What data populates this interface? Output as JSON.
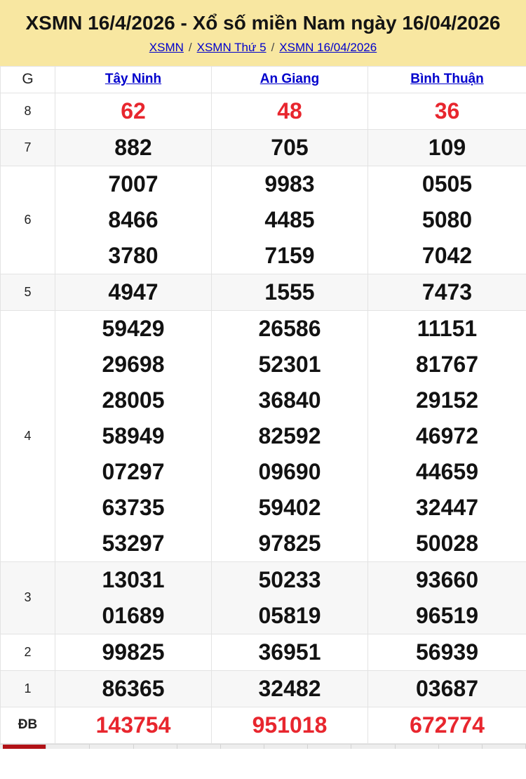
{
  "colors": {
    "header_bg": "#f8e7a1",
    "link_blue": "#0000cc",
    "accent_red": "#e8262e",
    "row_alt_bg": "#f7f7f7",
    "border": "#e3e3e3",
    "strip_active_red": "#b11217"
  },
  "header": {
    "title": "XSMN 16/4/2026 - Xổ số miền Nam ngày 16/04/2026",
    "separator": "/",
    "breadcrumb": [
      {
        "label": "XSMN"
      },
      {
        "label": "XSMN Thứ 5"
      },
      {
        "label": "XSMN 16/04/2026"
      }
    ]
  },
  "table": {
    "corner_label": "G",
    "provinces": [
      "Tây Ninh",
      "An Giang",
      "Bình Thuận"
    ],
    "rows": [
      {
        "label": "8",
        "red": true,
        "shaded": false,
        "cells": [
          [
            "62"
          ],
          [
            "48"
          ],
          [
            "36"
          ]
        ]
      },
      {
        "label": "7",
        "red": false,
        "shaded": true,
        "cells": [
          [
            "882"
          ],
          [
            "705"
          ],
          [
            "109"
          ]
        ]
      },
      {
        "label": "6",
        "red": false,
        "shaded": false,
        "cells": [
          [
            "7007",
            "8466",
            "3780"
          ],
          [
            "9983",
            "4485",
            "7159"
          ],
          [
            "0505",
            "5080",
            "7042"
          ]
        ]
      },
      {
        "label": "5",
        "red": false,
        "shaded": true,
        "cells": [
          [
            "4947"
          ],
          [
            "1555"
          ],
          [
            "7473"
          ]
        ]
      },
      {
        "label": "4",
        "red": false,
        "shaded": false,
        "cells": [
          [
            "59429",
            "29698",
            "28005",
            "58949",
            "07297",
            "63735",
            "53297"
          ],
          [
            "26586",
            "52301",
            "36840",
            "82592",
            "09690",
            "59402",
            "97825"
          ],
          [
            "11151",
            "81767",
            "29152",
            "46972",
            "44659",
            "32447",
            "50028"
          ]
        ]
      },
      {
        "label": "3",
        "red": false,
        "shaded": true,
        "cells": [
          [
            "13031",
            "01689"
          ],
          [
            "50233",
            "05819"
          ],
          [
            "93660",
            "96519"
          ]
        ]
      },
      {
        "label": "2",
        "red": false,
        "shaded": false,
        "cells": [
          [
            "99825"
          ],
          [
            "36951"
          ],
          [
            "56939"
          ]
        ]
      },
      {
        "label": "1",
        "red": false,
        "shaded": true,
        "cells": [
          [
            "86365"
          ],
          [
            "32482"
          ],
          [
            "03687"
          ]
        ]
      },
      {
        "label": "ĐB",
        "red": true,
        "shaded": false,
        "cells": [
          [
            "143754"
          ],
          [
            "951018"
          ],
          [
            "672774"
          ]
        ]
      }
    ]
  },
  "bottom_tabs": {
    "count": 12,
    "active_index": 0
  }
}
